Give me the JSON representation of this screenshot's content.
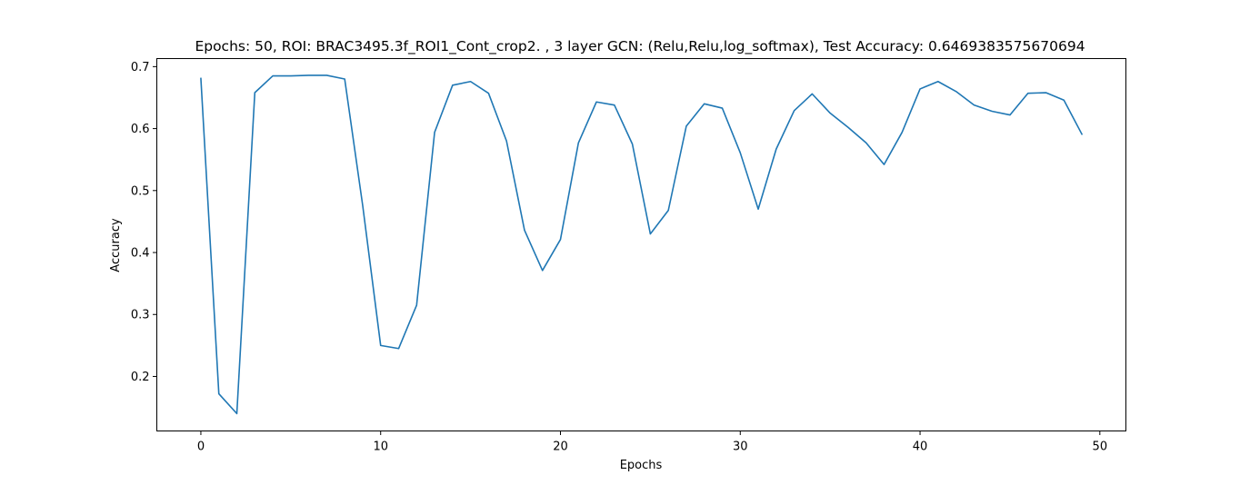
{
  "chart_data": {
    "type": "line",
    "title": "Epochs: 50, ROI: BRAC3495.3f_ROI1_Cont_crop2. , 3 layer GCN: (Relu,Relu,log_softmax), Test Accuracy: 0.6469383575670694",
    "xlabel": "Epochs",
    "ylabel": "Accuracy",
    "xlim": [
      -2.45,
      51.45
    ],
    "ylim": [
      0.112,
      0.713
    ],
    "xticks": [
      0,
      10,
      20,
      30,
      40,
      50
    ],
    "yticks": [
      0.2,
      0.3,
      0.4,
      0.5,
      0.6,
      0.7
    ],
    "grid": false,
    "line_color": "#1f77b4",
    "series": [
      {
        "x": [
          0,
          1,
          2,
          3,
          4,
          5,
          6,
          7,
          8,
          9,
          10,
          11,
          12,
          13,
          14,
          15,
          16,
          17,
          18,
          19,
          20,
          21,
          22,
          23,
          24,
          25,
          26,
          27,
          28,
          29,
          30,
          31,
          32,
          33,
          34,
          35,
          36,
          37,
          38,
          39,
          40,
          41,
          42,
          43,
          44,
          45,
          46,
          47,
          48,
          49
        ],
        "values": [
          0.681,
          0.172,
          0.14,
          0.658,
          0.685,
          0.685,
          0.686,
          0.686,
          0.68,
          0.476,
          0.25,
          0.245,
          0.315,
          0.594,
          0.67,
          0.676,
          0.657,
          0.58,
          0.436,
          0.371,
          0.421,
          0.577,
          0.643,
          0.638,
          0.575,
          0.43,
          0.468,
          0.604,
          0.64,
          0.633,
          0.561,
          0.47,
          0.567,
          0.629,
          0.656,
          0.625,
          0.602,
          0.577,
          0.542,
          0.594,
          0.664,
          0.676,
          0.66,
          0.638,
          0.628,
          0.622,
          0.657,
          0.658,
          0.646,
          0.591
        ]
      }
    ]
  }
}
